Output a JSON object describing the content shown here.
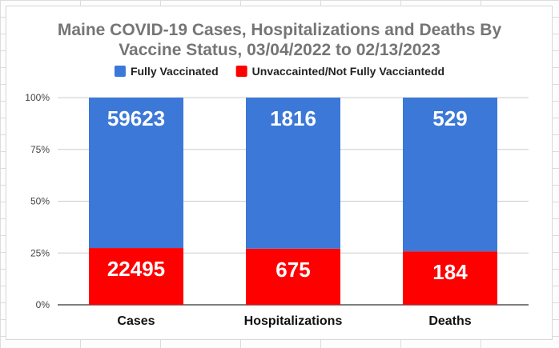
{
  "chart_data": {
    "type": "bar",
    "stacked": true,
    "normalized": true,
    "title": "Maine COVID-19 Cases, Hospitalizations and Deaths By Vaccine Status, 03/04/2022 to 02/13/2023",
    "title_lines": [
      "Maine COVID-19 Cases, Hospitalizations and Deaths By",
      "Vaccine Status, 03/04/2022 to 02/13/2023"
    ],
    "categories": [
      "Cases",
      "Hospitalizations",
      "Deaths"
    ],
    "series": [
      {
        "name": "Unvaccainted/Not Fully Vacciantedd",
        "color": "#ff0000",
        "values": [
          22495,
          675,
          184
        ],
        "labels": [
          "22495",
          "675",
          "184"
        ]
      },
      {
        "name": "Fully Vaccinated",
        "color": "#3c78d8",
        "values": [
          59623,
          1816,
          529
        ],
        "labels": [
          "59623",
          "1816",
          "529"
        ]
      }
    ],
    "legend_order": [
      1,
      0
    ],
    "legend_position": "top-center",
    "y_ticks": [
      {
        "value": 0,
        "label": "0%"
      },
      {
        "value": 0.25,
        "label": "25%"
      },
      {
        "value": 0.5,
        "label": "50%"
      },
      {
        "value": 0.75,
        "label": "75%"
      },
      {
        "value": 1,
        "label": "100%"
      }
    ],
    "ylim": [
      0,
      1
    ],
    "grid": true,
    "xlabel": "",
    "ylabel": ""
  }
}
